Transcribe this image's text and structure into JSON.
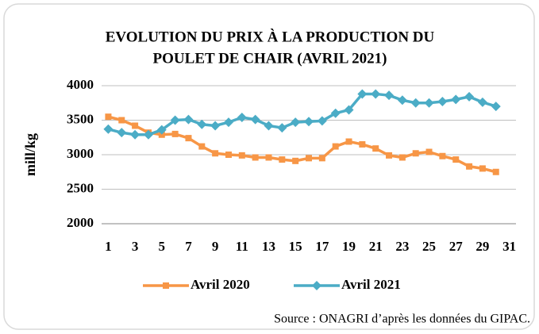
{
  "chart_data": {
    "type": "line",
    "title": "EVOLUTION DU PRIX À LA PRODUCTION DU",
    "subtitle": "POULET DE CHAIR (AVRIL 2021)",
    "y_label": "mill/kg",
    "source": "Source : ONAGRI d’après les données du GIPAC.",
    "categories": [
      "1",
      null,
      "3",
      null,
      "5",
      null,
      "7",
      null,
      "9",
      null,
      "11",
      null,
      "13",
      null,
      "15",
      null,
      "17",
      null,
      "19",
      null,
      "21",
      null,
      "23",
      null,
      "25",
      null,
      "27",
      null,
      "29",
      null,
      "31"
    ],
    "series": [
      {
        "name": "Avril 2020",
        "color": "#f79646",
        "marker": "square",
        "values": [
          3550,
          3500,
          3420,
          3320,
          3290,
          3300,
          3240,
          3120,
          3020,
          3000,
          2990,
          2960,
          2960,
          2930,
          2910,
          2950,
          2950,
          3120,
          3190,
          3150,
          3090,
          2990,
          2960,
          3020,
          3040,
          2980,
          2930,
          2830,
          2800,
          2750,
          null
        ]
      },
      {
        "name": "Avril 2021",
        "color": "#4bacc6",
        "marker": "diamond",
        "values": [
          3370,
          3320,
          3290,
          3290,
          3360,
          3500,
          3510,
          3440,
          3420,
          3470,
          3540,
          3510,
          3420,
          3390,
          3470,
          3480,
          3490,
          3600,
          3650,
          3880,
          3880,
          3860,
          3790,
          3750,
          3750,
          3770,
          3800,
          3840,
          3760,
          3700,
          null
        ]
      }
    ],
    "ylim": [
      2000,
      4000
    ],
    "yticks": [
      2000,
      2500,
      3000,
      3500,
      4000
    ],
    "grid": true,
    "legend": "bottom"
  }
}
